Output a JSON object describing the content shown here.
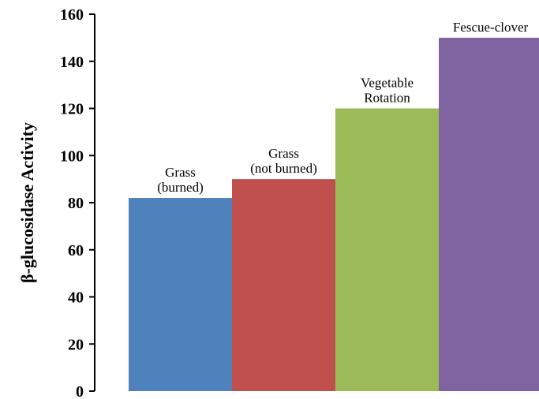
{
  "chart_data": {
    "type": "bar",
    "title": "",
    "xlabel": "",
    "ylabel": "β-glucosidase Activity",
    "ylim": [
      0,
      160
    ],
    "yticks": [
      0,
      20,
      40,
      60,
      80,
      100,
      120,
      140,
      160
    ],
    "grid": false,
    "legend": "none",
    "categories": [
      [
        "Grass",
        "(burned)"
      ],
      [
        "Grass",
        "(not burned)"
      ],
      [
        "Vegetable",
        "Rotation"
      ],
      [
        "Fescue-clover"
      ]
    ],
    "values": [
      82,
      90,
      120,
      150
    ],
    "colors": [
      "#4f81bd",
      "#c0504d",
      "#9bbb59",
      "#8064a2"
    ]
  }
}
